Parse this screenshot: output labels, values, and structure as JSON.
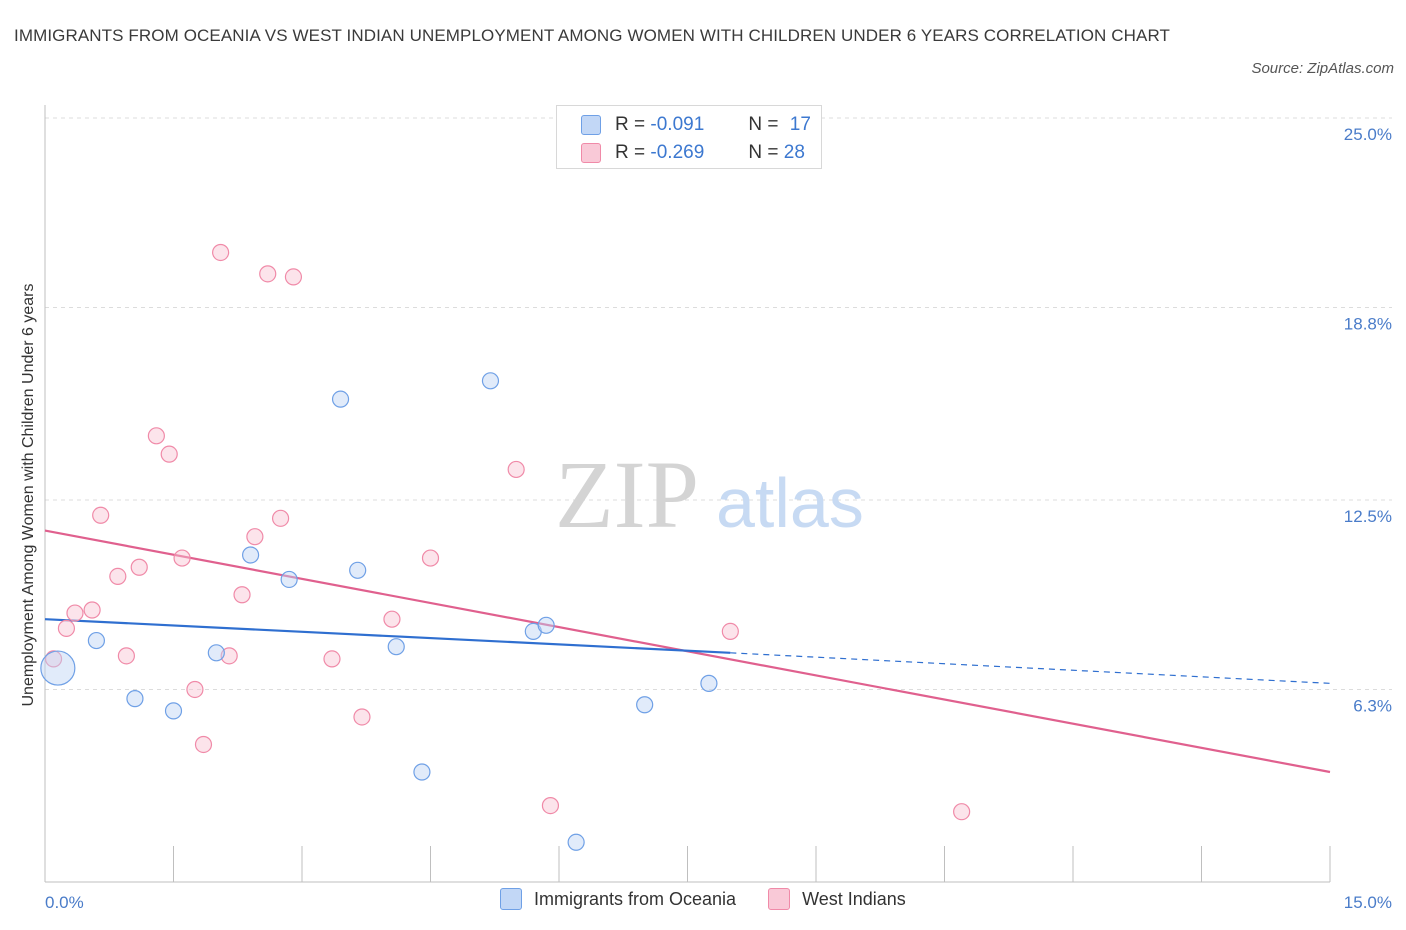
{
  "header": {
    "title": "IMMIGRANTS FROM OCEANIA VS WEST INDIAN UNEMPLOYMENT AMONG WOMEN WITH CHILDREN UNDER 6 YEARS CORRELATION CHART",
    "source": "Source: ZipAtlas.com"
  },
  "watermark": {
    "zip": "ZIP",
    "atlas": "atlas"
  },
  "legend": {
    "r_label": "R =",
    "n_label": "N =",
    "oceania": {
      "r": "-0.091",
      "n": "17"
    },
    "west_indians": {
      "r": "-0.269",
      "n": "28"
    }
  },
  "chart_data": {
    "type": "scatter",
    "title": "IMMIGRANTS FROM OCEANIA VS WEST INDIAN UNEMPLOYMENT AMONG WOMEN WITH CHILDREN UNDER 6 YEARS CORRELATION CHART",
    "xlabel": "",
    "ylabel": "Unemployment Among Women with Children Under 6 years",
    "xlim": [
      0,
      15
    ],
    "ylim": [
      0,
      25
    ],
    "x_tick_labels": [
      "0.0%",
      "15.0%"
    ],
    "y_tick_labels": [
      "6.3%",
      "12.5%",
      "18.8%",
      "25.0%"
    ],
    "y_ticks": [
      6.3,
      12.5,
      18.8,
      25.0
    ],
    "grid": true,
    "legend_position": "top-center",
    "colors": {
      "oceania": "#6fa0e6",
      "oceania_line": "#2f6fd0",
      "west_indians": "#f08aa8",
      "west_indians_line": "#e0608e"
    },
    "series": [
      {
        "name": "Immigrants from Oceania",
        "points": [
          [
            0.15,
            7.0
          ],
          [
            0.6,
            7.9
          ],
          [
            1.05,
            6.0
          ],
          [
            1.5,
            5.6
          ],
          [
            2.0,
            7.5
          ],
          [
            2.4,
            10.7
          ],
          [
            2.85,
            9.9
          ],
          [
            3.45,
            15.8
          ],
          [
            3.65,
            10.2
          ],
          [
            4.1,
            7.7
          ],
          [
            4.4,
            3.6
          ],
          [
            5.2,
            16.4
          ],
          [
            5.7,
            8.2
          ],
          [
            5.85,
            8.4
          ],
          [
            7.0,
            5.8
          ],
          [
            7.75,
            6.5
          ],
          [
            6.2,
            1.3
          ]
        ],
        "trend": {
          "x": [
            0,
            8.0
          ],
          "y": [
            8.6,
            7.5
          ]
        },
        "trend_extension": {
          "x": [
            8.0,
            15.0
          ],
          "y": [
            7.5,
            6.5
          ]
        }
      },
      {
        "name": "West Indians",
        "points": [
          [
            0.1,
            7.3
          ],
          [
            0.25,
            8.3
          ],
          [
            0.35,
            8.8
          ],
          [
            0.55,
            8.9
          ],
          [
            0.65,
            12.0
          ],
          [
            0.85,
            10.0
          ],
          [
            0.95,
            7.4
          ],
          [
            1.1,
            10.3
          ],
          [
            1.3,
            14.6
          ],
          [
            1.45,
            14.0
          ],
          [
            1.6,
            10.6
          ],
          [
            1.75,
            6.3
          ],
          [
            1.85,
            4.5
          ],
          [
            2.05,
            20.6
          ],
          [
            2.15,
            7.4
          ],
          [
            2.3,
            9.4
          ],
          [
            2.45,
            11.3
          ],
          [
            2.6,
            19.9
          ],
          [
            2.75,
            11.9
          ],
          [
            2.9,
            19.8
          ],
          [
            3.35,
            7.3
          ],
          [
            3.7,
            5.4
          ],
          [
            4.05,
            8.6
          ],
          [
            4.5,
            10.6
          ],
          [
            5.5,
            13.5
          ],
          [
            5.9,
            2.5
          ],
          [
            8.0,
            8.2
          ],
          [
            10.7,
            2.3
          ]
        ],
        "trend": {
          "x": [
            0,
            15.0
          ],
          "y": [
            11.5,
            3.6
          ]
        }
      }
    ]
  }
}
